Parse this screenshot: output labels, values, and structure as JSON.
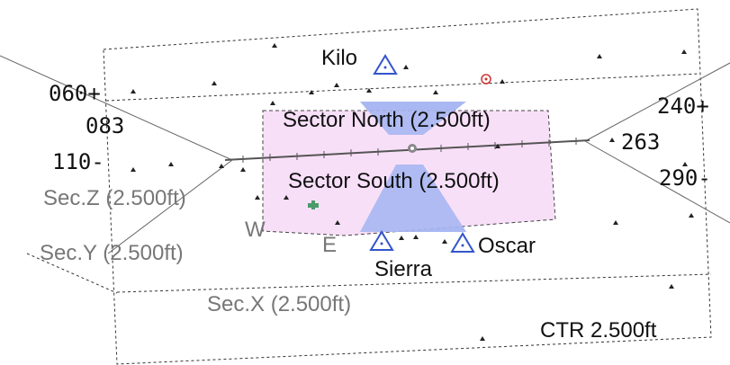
{
  "sectors": {
    "north": "Sector North (2.500ft)",
    "south": "Sector South (2.500ft)",
    "z": "Sec.Z (2.500ft)",
    "y": "Sec.Y (2.500ft)",
    "x": "Sec.X (2.500ft)",
    "ctr": "CTR 2.500ft"
  },
  "reporting_points": {
    "kilo": "Kilo",
    "sierra": "Sierra",
    "oscar": "Oscar"
  },
  "runway_sides": {
    "west": "W",
    "east": "E"
  },
  "headings_left": [
    "060+",
    "083",
    "110-"
  ],
  "headings_right": [
    "240+",
    "263",
    "290-"
  ],
  "colors": {
    "sector_fill": "#f7d9f7",
    "sector_border": "#555555",
    "approach_fill": "#a8b8f2",
    "runway": "#555555",
    "reporting_point": "#3355cc",
    "obstacle": "#222222"
  },
  "icons": {
    "reporting_point": "triangle-icon",
    "obstacle": "obstacle-icon",
    "airport": "airport-icon"
  }
}
